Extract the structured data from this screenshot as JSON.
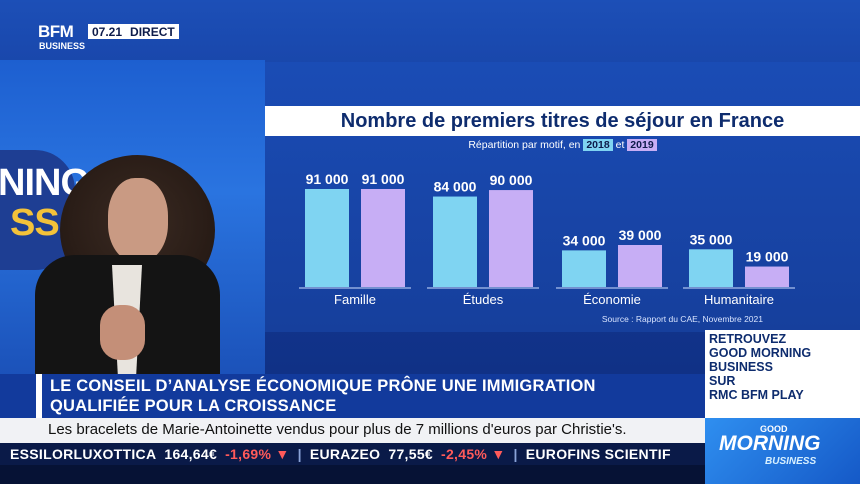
{
  "header": {
    "logo_top": "BFM",
    "logo_bottom": "BUSINESS",
    "time": "07.21",
    "live_label": "DIRECT"
  },
  "studio": {
    "screen_text_1": "NING",
    "screen_text_2": "SS"
  },
  "chart": {
    "title": "Nombre de premiers titres de séjour en France",
    "subtitle_prefix": "Répartition par motif, en",
    "year_a": "2018",
    "year_connector": "et",
    "year_b": "2019",
    "source": "Source : Rapport du CAE, Novembre 2021",
    "colors": {
      "2018": "#7fd4f2",
      "2019": "#c7aef5"
    }
  },
  "chart_data": {
    "type": "bar",
    "title": "Nombre de premiers titres de séjour en France",
    "subtitle": "Répartition par motif, en 2018 et 2019",
    "categories": [
      "Famille",
      "Études",
      "Économie",
      "Humanitaire"
    ],
    "series": [
      {
        "name": "2018",
        "values": [
          91000,
          84000,
          34000,
          35000
        ],
        "labels": [
          "91 000",
          "84 000",
          "34 000",
          "35 000"
        ]
      },
      {
        "name": "2019",
        "values": [
          91000,
          90000,
          39000,
          19000
        ],
        "labels": [
          "91 000",
          "90 000",
          "39 000",
          "19 000"
        ]
      }
    ],
    "ylim": [
      0,
      91000
    ],
    "grid": false
  },
  "promo": {
    "line1": "RETROUVEZ",
    "line2": "GOOD MORNING",
    "line3": "BUSINESS",
    "line4": "SUR",
    "line5": "RMC BFM PLAY"
  },
  "show_logo": {
    "good": "GOOD",
    "morning": "MORNING",
    "business": "BUSINESS"
  },
  "headline": {
    "line1": "LE CONSEIL D’ANALYSE ÉCONOMIQUE PRÔNE UNE IMMIGRATION",
    "line2": "QUALIFIÉE POUR LA CROISSANCE"
  },
  "news": {
    "text": "Les bracelets de Marie-Antoinette vendus pour plus de 7 millions d'euros par Christie's."
  },
  "ticker": [
    {
      "name": "ESSILORLUXOTTICA",
      "price": "164,64€",
      "change": "-1,69%"
    },
    {
      "name": "EURAZEO",
      "price": "77,55€",
      "change": "-2,45%"
    },
    {
      "name": "EUROFINS SCIENTIF",
      "price": "",
      "change": ""
    }
  ]
}
